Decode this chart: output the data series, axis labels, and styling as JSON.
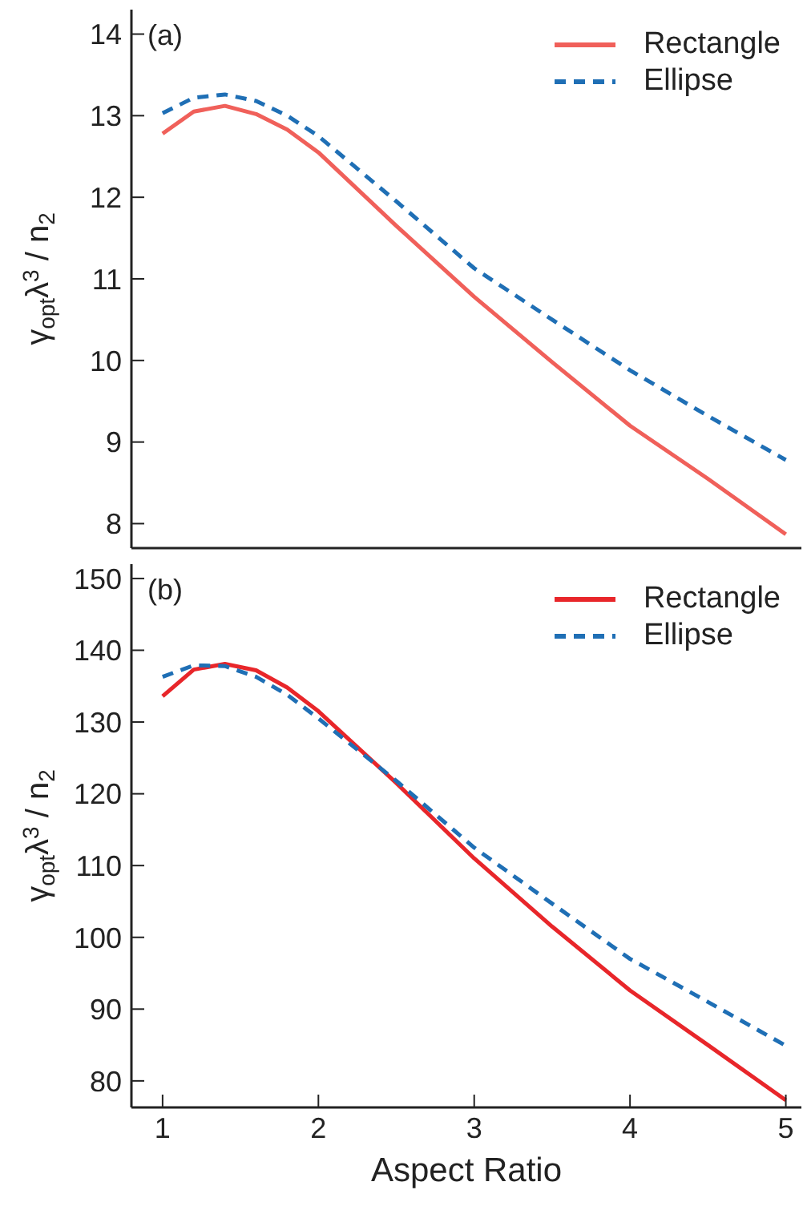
{
  "chart_data": [
    {
      "type": "line",
      "ylabel": "γ$_{opt}$λ$^{3}$ / n$_{2}$",
      "annotations": [
        "(a)"
      ],
      "x": [
        1,
        1.2,
        1.4,
        1.6,
        1.8,
        2,
        2.5,
        3,
        3.5,
        4,
        4.5,
        5
      ],
      "series": [
        {
          "name": "Rectangle",
          "color": "#f0605a",
          "line_style": "solid",
          "values": [
            12.78,
            13.05,
            13.12,
            13.02,
            12.83,
            12.55,
            11.65,
            10.78,
            9.98,
            9.2,
            8.55,
            7.87
          ]
        },
        {
          "name": "Ellipse",
          "color": "#1f6fb5",
          "line_style": "dashed",
          "values": [
            13.03,
            13.22,
            13.26,
            13.18,
            13.0,
            12.75,
            11.95,
            11.13,
            10.5,
            9.88,
            9.32,
            8.78
          ]
        }
      ],
      "xlim": [
        0.8,
        5.1
      ],
      "xticks": [
        1,
        2,
        3,
        4,
        5
      ],
      "ylim": [
        7.7,
        14.3
      ],
      "yticks": [
        8,
        9,
        10,
        11,
        12,
        13,
        14
      ],
      "legend": "top right",
      "tick_labels": "y"
    },
    {
      "type": "line",
      "ylabel": "γ$_{opt}$λ$^{3}$ / n$_{2}$",
      "xlabel": "Aspect Ratio",
      "annotations": [
        "(b)"
      ],
      "x": [
        1,
        1.2,
        1.4,
        1.6,
        1.8,
        2,
        2.5,
        3,
        3.5,
        4,
        4.5,
        5
      ],
      "series": [
        {
          "name": "Rectangle",
          "color": "#e8262a",
          "line_style": "solid",
          "values": [
            133.6,
            137.3,
            138.1,
            137.2,
            134.8,
            131.5,
            121.5,
            111,
            101.5,
            92.6,
            85,
            77.3
          ]
        },
        {
          "name": "Ellipse",
          "color": "#1f6fb5",
          "line_style": "dashed",
          "values": [
            136.3,
            137.9,
            137.8,
            136.3,
            133.8,
            130.5,
            121.8,
            112.5,
            104.7,
            97,
            91,
            84.9
          ]
        }
      ],
      "xlim": [
        0.8,
        5.1
      ],
      "xticks": [
        1,
        2,
        3,
        4,
        5
      ],
      "ylim": [
        76.3,
        152
      ],
      "yticks": [
        80,
        90,
        100,
        110,
        120,
        130,
        140,
        150
      ],
      "legend": "top right"
    }
  ]
}
